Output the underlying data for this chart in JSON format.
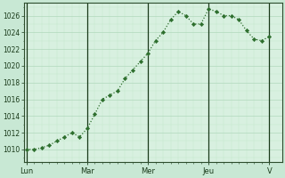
{
  "background_color": "#c8e8d4",
  "plot_bg_color": "#d8f0e0",
  "grid_color_major": "#b0d8bc",
  "grid_color_minor": "#c4e8cc",
  "line_color": "#2d6e2d",
  "marker_color": "#2d6e2d",
  "ylim": [
    1008.5,
    1027.5
  ],
  "yticks": [
    1010,
    1012,
    1014,
    1016,
    1018,
    1020,
    1022,
    1024,
    1026
  ],
  "day_labels": [
    "Lun",
    "Mar",
    "Mer",
    "Jeu",
    "V"
  ],
  "day_positions": [
    0,
    24,
    48,
    72,
    96
  ],
  "x_values": [
    0,
    3,
    6,
    9,
    12,
    15,
    18,
    21,
    24,
    27,
    30,
    33,
    36,
    39,
    42,
    45,
    48,
    51,
    54,
    57,
    60,
    63,
    66,
    69,
    72,
    75,
    78,
    81,
    84,
    87,
    90,
    93,
    96
  ],
  "y_values": [
    1010.0,
    1010.0,
    1010.2,
    1010.5,
    1011.0,
    1011.5,
    1012.0,
    1011.5,
    1012.5,
    1014.2,
    1016.0,
    1016.5,
    1017.0,
    1018.5,
    1019.5,
    1020.5,
    1021.5,
    1023.0,
    1024.0,
    1025.5,
    1026.5,
    1026.0,
    1025.0,
    1025.0,
    1026.8,
    1026.5,
    1026.0,
    1026.0,
    1025.5,
    1024.2,
    1023.2,
    1023.0,
    1023.5
  ],
  "xlim": [
    -1,
    101
  ],
  "vline_color": "#1a3a1a",
  "vline_positions": [
    0,
    24,
    48,
    72,
    96
  ],
  "spine_color": "#2d4d2d",
  "tick_color": "#1a3a1a",
  "label_color": "#1a3a1a"
}
